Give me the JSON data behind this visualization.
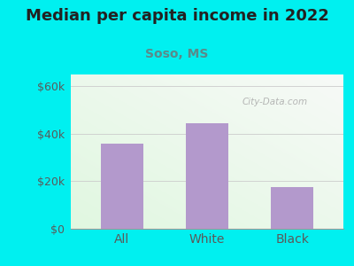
{
  "title": "Median per capita income in 2022",
  "subtitle": "Soso, MS",
  "categories": [
    "All",
    "White",
    "Black"
  ],
  "values": [
    36000,
    44500,
    17500
  ],
  "bar_color": "#b399cc",
  "title_fontsize": 13,
  "subtitle_fontsize": 10,
  "tick_labels": [
    "$0",
    "$20k",
    "$40k",
    "$60k"
  ],
  "tick_values": [
    0,
    20000,
    40000,
    60000
  ],
  "ylim": [
    0,
    65000
  ],
  "outer_bg": "#00f0f0",
  "axis_label_color": "#5a5a5a",
  "title_color": "#222222",
  "subtitle_color": "#5a8a8a",
  "grid_color": "#cccccc",
  "watermark_text": "City-Data.com",
  "watermark_color": "#aaaaaa"
}
